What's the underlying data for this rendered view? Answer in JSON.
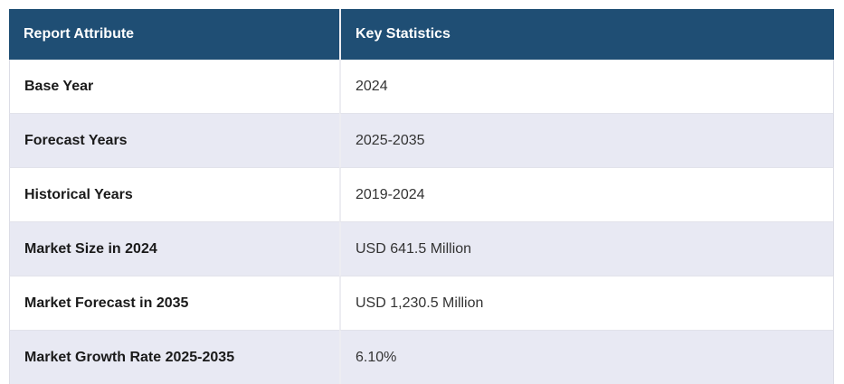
{
  "table": {
    "columns": [
      {
        "label": "Report Attribute"
      },
      {
        "label": "Key Statistics"
      }
    ],
    "rows": [
      {
        "attribute": "Base Year",
        "value": "2024"
      },
      {
        "attribute": "Forecast Years",
        "value": "2025-2035"
      },
      {
        "attribute": "Historical Years",
        "value": "2019-2024"
      },
      {
        "attribute": "Market Size in 2024",
        "value": "USD 641.5 Million"
      },
      {
        "attribute": "Market Forecast in 2035",
        "value": "USD 1,230.5 Million"
      },
      {
        "attribute": "Market Growth Rate 2025-2035",
        "value": "6.10%"
      }
    ],
    "colors": {
      "header_bg": "#1f4e74",
      "header_text": "#ffffff",
      "row_bg": "#ffffff",
      "row_alt_bg": "#e8e9f3",
      "border": "#dcdde6",
      "attribute_text": "#1a1a1a",
      "value_text": "#333333"
    }
  }
}
